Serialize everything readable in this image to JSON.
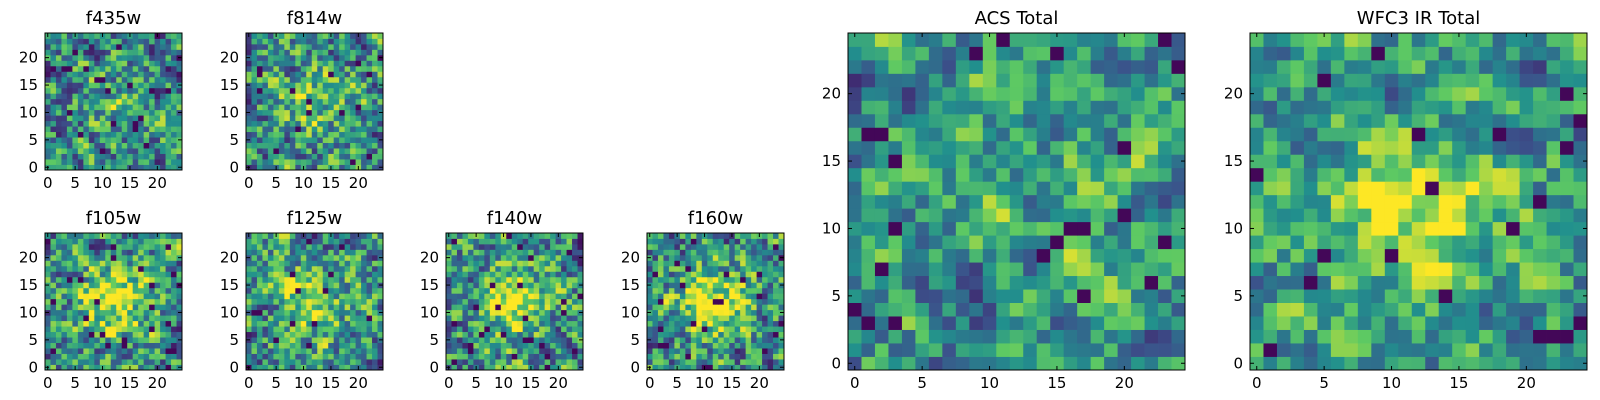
{
  "figure": {
    "background": "#ffffff",
    "colormap": "viridis",
    "colormap_stops": [
      "#440154",
      "#3b528b",
      "#21908d",
      "#5dc963",
      "#fde725"
    ]
  },
  "chart_data": [
    {
      "id": "f435w",
      "type": "heatmap",
      "title": "f435w",
      "grid_size": 25,
      "pixel_scale": "fine",
      "xlim": [
        0,
        24
      ],
      "ylim": [
        0,
        24
      ],
      "xticks": [
        0,
        5,
        10,
        15,
        20
      ],
      "yticks": [
        0,
        5,
        10,
        15,
        20
      ],
      "seed": 11,
      "center_peak": 0.15
    },
    {
      "id": "f814w",
      "type": "heatmap",
      "title": "f814w",
      "grid_size": 25,
      "pixel_scale": "fine",
      "xlim": [
        0,
        24
      ],
      "ylim": [
        0,
        24
      ],
      "xticks": [
        0,
        5,
        10,
        15,
        20
      ],
      "yticks": [
        0,
        5,
        10,
        15,
        20
      ],
      "seed": 23,
      "center_peak": 0.25
    },
    {
      "id": "f105w",
      "type": "heatmap",
      "title": "f105w",
      "grid_size": 25,
      "pixel_scale": "fine",
      "xlim": [
        0,
        24
      ],
      "ylim": [
        0,
        24
      ],
      "xticks": [
        0,
        5,
        10,
        15,
        20
      ],
      "yticks": [
        0,
        5,
        10,
        15,
        20
      ],
      "seed": 37,
      "center_peak": 0.45
    },
    {
      "id": "f125w",
      "type": "heatmap",
      "title": "f125w",
      "grid_size": 25,
      "pixel_scale": "fine",
      "xlim": [
        0,
        24
      ],
      "ylim": [
        0,
        24
      ],
      "xticks": [
        0,
        5,
        10,
        15,
        20
      ],
      "yticks": [
        0,
        5,
        10,
        15,
        20
      ],
      "seed": 41,
      "center_peak": 0.35
    },
    {
      "id": "f140w",
      "type": "heatmap",
      "title": "f140w",
      "grid_size": 25,
      "pixel_scale": "fine",
      "xlim": [
        0,
        24
      ],
      "ylim": [
        0,
        24
      ],
      "xticks": [
        0,
        5,
        10,
        15,
        20
      ],
      "yticks": [
        0,
        5,
        10,
        15,
        20
      ],
      "seed": 53,
      "center_peak": 0.45
    },
    {
      "id": "f160w",
      "type": "heatmap",
      "title": "f160w",
      "grid_size": 25,
      "pixel_scale": "fine",
      "xlim": [
        0,
        24
      ],
      "ylim": [
        0,
        24
      ],
      "xticks": [
        0,
        5,
        10,
        15,
        20
      ],
      "yticks": [
        0,
        5,
        10,
        15,
        20
      ],
      "seed": 67,
      "center_peak": 0.45
    },
    {
      "id": "acs_total",
      "type": "heatmap",
      "title": "ACS Total",
      "grid_size": 25,
      "pixel_scale": "coarse",
      "xlim": [
        0,
        24
      ],
      "ylim": [
        0,
        24
      ],
      "xticks": [
        0,
        5,
        10,
        15,
        20
      ],
      "yticks": [
        0,
        5,
        10,
        15,
        20
      ],
      "seed": 79,
      "center_peak": 0.1
    },
    {
      "id": "wfc3_ir_total",
      "type": "heatmap",
      "title": "WFC3 IR Total",
      "grid_size": 25,
      "pixel_scale": "coarse",
      "xlim": [
        0,
        24
      ],
      "ylim": [
        0,
        24
      ],
      "xticks": [
        0,
        5,
        10,
        15,
        20
      ],
      "yticks": [
        0,
        5,
        10,
        15,
        20
      ],
      "seed": 97,
      "center_peak": 0.45
    }
  ]
}
